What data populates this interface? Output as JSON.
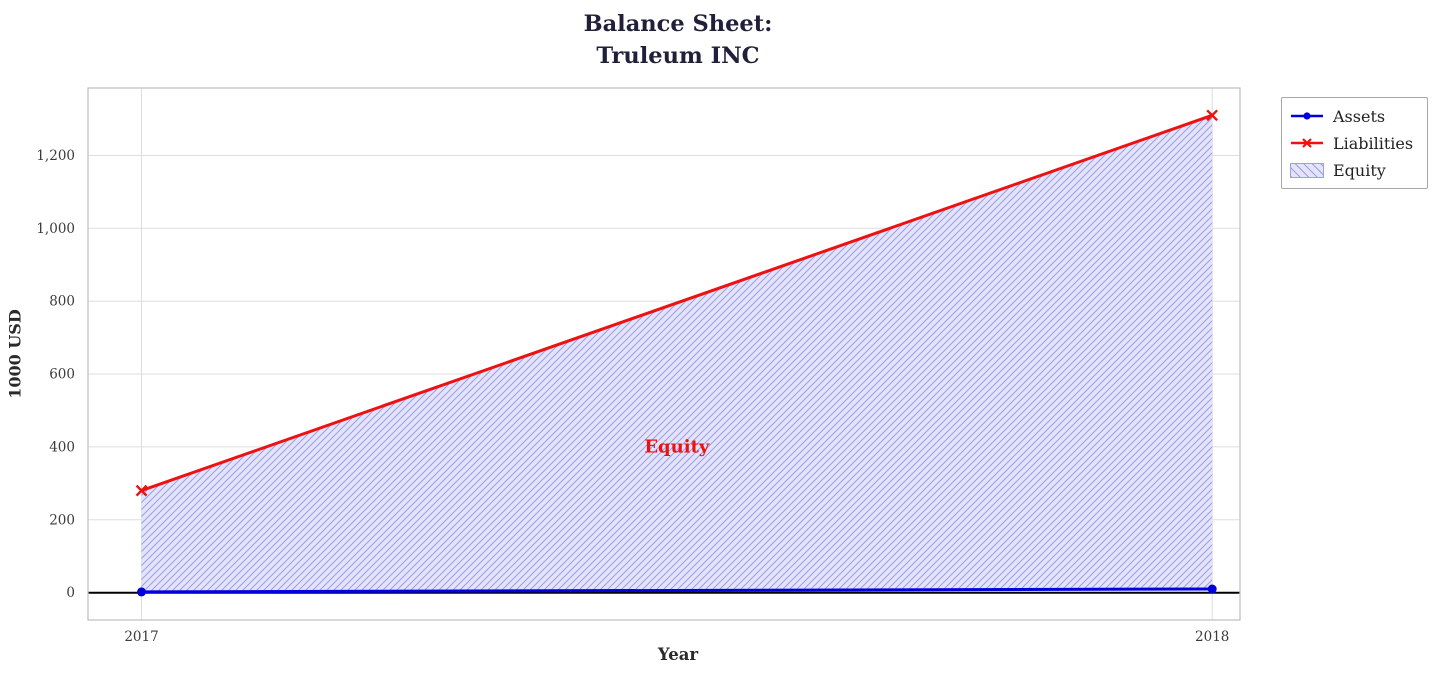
{
  "title": {
    "line1": "Balance Sheet:",
    "line2": "Truleum INC"
  },
  "axes": {
    "xlabel": "Year",
    "ylabel": "1000 USD"
  },
  "legend": {
    "items": [
      {
        "label": "Assets"
      },
      {
        "label": "Liabilities"
      },
      {
        "label": "Equity"
      }
    ]
  },
  "annotation": {
    "text": "Equity"
  },
  "chart_data": {
    "type": "line",
    "title": "Balance Sheet: Truleum INC",
    "xlabel": "Year",
    "ylabel": "1000 USD",
    "x": [
      2017,
      2018
    ],
    "series": [
      {
        "name": "Assets",
        "values": [
          2,
          10
        ],
        "color": "#0000dd",
        "marker": "circle"
      },
      {
        "name": "Liabilities",
        "values": [
          280,
          1310
        ],
        "color": "#ee1111",
        "marker": "x"
      }
    ],
    "area_between": {
      "name": "Equity",
      "lower": "Assets",
      "upper": "Liabilities",
      "fill": "#e3e3f9",
      "hatch": "///",
      "hatch_color": "#9e9ee8"
    },
    "annotation": {
      "text": "Equity",
      "x": 2017.5,
      "y": 400,
      "color": "#ee1111"
    },
    "xticks": [
      2017,
      2018
    ],
    "xtick_labels": [
      "2017",
      "2018"
    ],
    "ytick_values": [
      0,
      200,
      400,
      600,
      800,
      1000,
      1200
    ],
    "ytick_labels": [
      "0",
      "200",
      "400",
      "600",
      "800",
      "1,000",
      "1,200"
    ],
    "xlim": [
      2016.95,
      2018.026
    ],
    "ylim": [
      -75,
      1385
    ],
    "grid": true,
    "axhline": 0,
    "legend_position": "outside upper right"
  }
}
